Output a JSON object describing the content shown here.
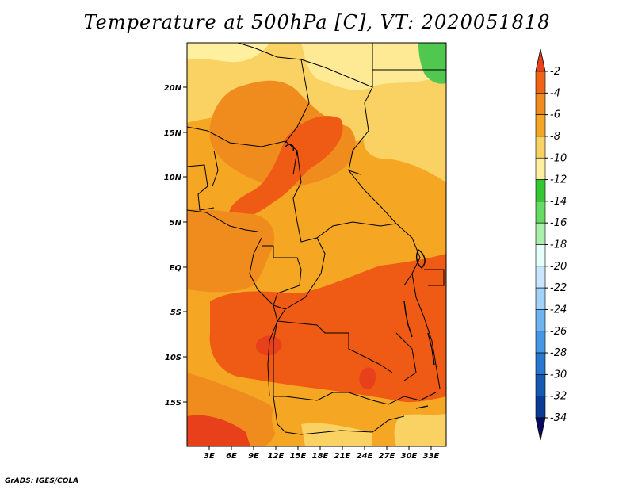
{
  "title": "Temperature at 500hPa [C], VT: 2020051818",
  "credit": "GrADS: IGES/COLA",
  "colors": {
    "ocean": "#f5a623",
    "warm": "#f08c1e",
    "warmest": "#ef5a14",
    "hot_red": "#e8401a",
    "yellow": "#fad264",
    "light_yellow": "#fff0a0",
    "green": "#50c850"
  },
  "latitude_labels": [
    "20N",
    "15N",
    "10N",
    "5N",
    "EQ",
    "5S",
    "10S",
    "15S"
  ],
  "longitude_labels": [
    "3E",
    "6E",
    "9E",
    "12E",
    "15E",
    "18E",
    "21E",
    "24E",
    "27E",
    "30E",
    "33E"
  ],
  "colorbar": {
    "labels": [
      "-2",
      "-4",
      "-6",
      "-8",
      "-10",
      "-12",
      "-14",
      "-16",
      "-18",
      "-20",
      "-22",
      "-24",
      "-26",
      "-28",
      "-30",
      "-32",
      "-34"
    ],
    "colors": [
      "#e8401a",
      "#f06414",
      "#f08c1e",
      "#f5a623",
      "#fad264",
      "#fff0a0",
      "#32c832",
      "#64dc64",
      "#aaf0aa",
      "#e6fffa",
      "#c8e6ff",
      "#a0d2fa",
      "#6eb4f0",
      "#4696e6",
      "#2878d2",
      "#145ab4",
      "#0a3c96",
      "#0a0a64"
    ]
  }
}
